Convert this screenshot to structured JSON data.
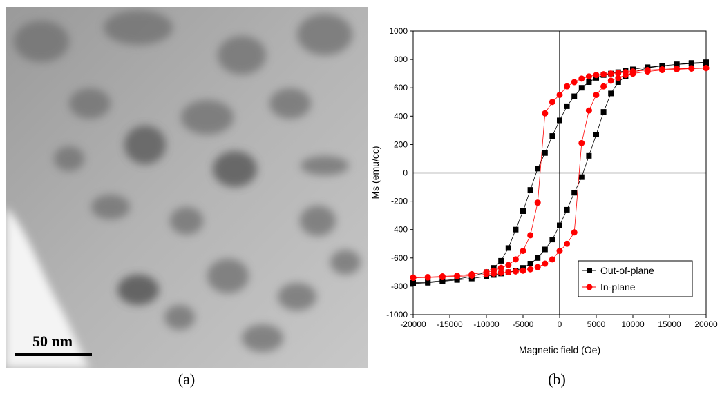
{
  "figure": {
    "panel_a": {
      "scale_bar": "50 nm",
      "caption": "(a)"
    },
    "panel_b": {
      "caption": "(b)"
    }
  },
  "chart_data": {
    "type": "line",
    "xlabel": "Magnetic field (Oe)",
    "ylabel": "Ms (emu/cc)",
    "x": [
      20000,
      18000,
      16000,
      14000,
      12000,
      10000,
      9000,
      8000,
      7000,
      6000,
      5000,
      4000,
      3000,
      2000,
      1000,
      0,
      -1000,
      -2000,
      -3000,
      -4000,
      -5000,
      -6000,
      -7000,
      -8000,
      -9000,
      -10000,
      -12000,
      -14000,
      -16000,
      -18000,
      -20000,
      -20000,
      -18000,
      -16000,
      -14000,
      -12000,
      -10000,
      -9000,
      -8000,
      -7000,
      -6000,
      -5000,
      -4000,
      -3000,
      -2000,
      -1000,
      0,
      1000,
      2000,
      3000,
      4000,
      5000,
      6000,
      7000,
      8000,
      9000,
      10000,
      12000,
      14000,
      16000,
      18000,
      20000
    ],
    "series": [
      {
        "name": "Out-of-plane",
        "color": "#000000",
        "marker": "square",
        "values": [
          780,
          775,
          765,
          755,
          745,
          730,
          720,
          710,
          700,
          690,
          670,
          640,
          600,
          540,
          470,
          370,
          260,
          140,
          30,
          -120,
          -270,
          -400,
          -530,
          -620,
          -670,
          -700,
          -730,
          -750,
          -760,
          -770,
          -775,
          -780,
          -775,
          -765,
          -755,
          -745,
          -730,
          -720,
          -710,
          -700,
          -690,
          -670,
          -640,
          -600,
          -540,
          -470,
          -370,
          -260,
          -140,
          -30,
          120,
          270,
          430,
          560,
          640,
          680,
          710,
          740,
          755,
          765,
          770,
          775
        ]
      },
      {
        "name": "In-plane",
        "color": "#ff0000",
        "marker": "circle",
        "values": [
          740,
          738,
          735,
          730,
          725,
          715,
          710,
          705,
          700,
          695,
          690,
          680,
          665,
          640,
          610,
          550,
          500,
          420,
          -210,
          -440,
          -550,
          -610,
          -650,
          -670,
          -690,
          -700,
          -715,
          -725,
          -730,
          -735,
          -738,
          -740,
          -738,
          -735,
          -730,
          -725,
          -715,
          -710,
          -705,
          -700,
          -695,
          -690,
          -680,
          -665,
          -640,
          -610,
          -550,
          -500,
          -420,
          210,
          440,
          550,
          610,
          650,
          670,
          690,
          700,
          715,
          725,
          730,
          735,
          738
        ]
      }
    ],
    "xlim": [
      -20000,
      20000
    ],
    "xticks": [
      -20000,
      -15000,
      -10000,
      -5000,
      0,
      5000,
      10000,
      15000,
      20000
    ],
    "ylim": [
      -1000,
      1000
    ],
    "yticks": [
      -1000,
      -800,
      -600,
      -400,
      -200,
      0,
      200,
      400,
      600,
      800,
      1000
    ],
    "legend": "lower right"
  }
}
